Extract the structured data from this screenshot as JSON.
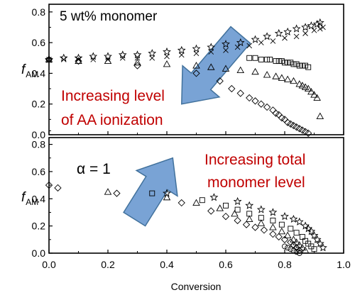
{
  "figure": {
    "xlabel": "Conversion",
    "ylabel_main": "f",
    "ylabel_sub": "AM"
  },
  "chart_data": [
    {
      "type": "scatter",
      "panel": "top",
      "title": "",
      "xlabel": "",
      "ylabel": "fAM",
      "xlim": [
        0.0,
        1.0
      ],
      "ylim": [
        0.0,
        0.85
      ],
      "xticks": [
        0.0,
        0.2,
        0.4,
        0.6,
        0.8,
        1.0
      ],
      "yticks": [
        0.0,
        0.2,
        0.4,
        0.6,
        0.8
      ],
      "xtick_labels": [
        "",
        "",
        "",
        "",
        "",
        ""
      ],
      "ytick_labels": [
        "0.0",
        "0.2",
        "0.4",
        "0.6",
        "0.8"
      ],
      "grid": false,
      "legend": "none",
      "annotations": [
        {
          "id": "top-panel-label",
          "text": "5 wt% monomer",
          "color": "#000000"
        },
        {
          "id": "ionization-note-line1",
          "text": "Increasing level",
          "color": "#c00000"
        },
        {
          "id": "ionization-note-line2",
          "text": "of AA ionization",
          "color": "#c00000"
        }
      ],
      "arrow": {
        "direction": "down-left",
        "from": [
          0.65,
          0.65
        ],
        "to": [
          0.45,
          0.2
        ],
        "fill": "#6e9bd1",
        "stroke": "#41719c"
      },
      "series": [
        {
          "marker": "star",
          "points": [
            [
              0.0,
              0.49
            ],
            [
              0.05,
              0.5
            ],
            [
              0.1,
              0.5
            ],
            [
              0.15,
              0.51
            ],
            [
              0.2,
              0.51
            ],
            [
              0.25,
              0.52
            ],
            [
              0.3,
              0.52
            ],
            [
              0.35,
              0.53
            ],
            [
              0.4,
              0.54
            ],
            [
              0.45,
              0.55
            ],
            [
              0.5,
              0.56
            ],
            [
              0.55,
              0.57
            ],
            [
              0.6,
              0.59
            ],
            [
              0.65,
              0.6
            ],
            [
              0.7,
              0.62
            ],
            [
              0.74,
              0.64
            ],
            [
              0.78,
              0.66
            ],
            [
              0.81,
              0.67
            ],
            [
              0.84,
              0.69
            ],
            [
              0.87,
              0.7
            ],
            [
              0.89,
              0.71
            ],
            [
              0.91,
              0.72
            ],
            [
              0.92,
              0.73
            ]
          ]
        },
        {
          "marker": "cross",
          "points": [
            [
              0.0,
              0.49
            ],
            [
              0.05,
              0.49
            ],
            [
              0.1,
              0.49
            ],
            [
              0.15,
              0.49
            ],
            [
              0.2,
              0.49
            ],
            [
              0.25,
              0.5
            ],
            [
              0.3,
              0.5
            ],
            [
              0.35,
              0.5
            ],
            [
              0.4,
              0.51
            ],
            [
              0.45,
              0.52
            ],
            [
              0.5,
              0.53
            ],
            [
              0.55,
              0.54
            ],
            [
              0.6,
              0.55
            ],
            [
              0.64,
              0.57
            ],
            [
              0.68,
              0.58
            ],
            [
              0.72,
              0.6
            ],
            [
              0.76,
              0.61
            ],
            [
              0.8,
              0.63
            ],
            [
              0.84,
              0.64
            ],
            [
              0.87,
              0.66
            ],
            [
              0.9,
              0.68
            ],
            [
              0.92,
              0.69
            ],
            [
              0.93,
              0.7
            ]
          ]
        },
        {
          "marker": "square",
          "points": [
            [
              0.68,
              0.5
            ],
            [
              0.7,
              0.5
            ],
            [
              0.72,
              0.49
            ],
            [
              0.74,
              0.49
            ],
            [
              0.75,
              0.49
            ],
            [
              0.77,
              0.48
            ],
            [
              0.78,
              0.48
            ],
            [
              0.79,
              0.48
            ],
            [
              0.8,
              0.47
            ],
            [
              0.81,
              0.47
            ],
            [
              0.82,
              0.47
            ],
            [
              0.83,
              0.46
            ],
            [
              0.84,
              0.46
            ],
            [
              0.85,
              0.45
            ],
            [
              0.86,
              0.45
            ],
            [
              0.87,
              0.45
            ],
            [
              0.88,
              0.44
            ]
          ]
        },
        {
          "marker": "triangle",
          "points": [
            [
              0.0,
              0.49
            ],
            [
              0.1,
              0.48
            ],
            [
              0.2,
              0.48
            ],
            [
              0.3,
              0.47
            ],
            [
              0.4,
              0.46
            ],
            [
              0.5,
              0.45
            ],
            [
              0.55,
              0.44
            ],
            [
              0.6,
              0.43
            ],
            [
              0.65,
              0.42
            ],
            [
              0.7,
              0.41
            ],
            [
              0.74,
              0.39
            ],
            [
              0.77,
              0.38
            ],
            [
              0.79,
              0.37
            ],
            [
              0.81,
              0.36
            ],
            [
              0.83,
              0.35
            ],
            [
              0.85,
              0.33
            ],
            [
              0.86,
              0.32
            ],
            [
              0.87,
              0.31
            ],
            [
              0.88,
              0.3
            ],
            [
              0.89,
              0.28
            ],
            [
              0.9,
              0.26
            ],
            [
              0.91,
              0.24
            ],
            [
              0.92,
              0.12
            ]
          ]
        },
        {
          "marker": "diamond",
          "points": [
            [
              0.0,
              0.49
            ],
            [
              0.1,
              0.48
            ],
            [
              0.3,
              0.45
            ],
            [
              0.5,
              0.4
            ],
            [
              0.58,
              0.35
            ],
            [
              0.62,
              0.3
            ],
            [
              0.65,
              0.27
            ],
            [
              0.68,
              0.24
            ],
            [
              0.7,
              0.22
            ],
            [
              0.72,
              0.2
            ],
            [
              0.74,
              0.18
            ],
            [
              0.76,
              0.16
            ],
            [
              0.77,
              0.14
            ],
            [
              0.78,
              0.13
            ],
            [
              0.79,
              0.11
            ],
            [
              0.8,
              0.1
            ],
            [
              0.81,
              0.08
            ],
            [
              0.82,
              0.07
            ],
            [
              0.83,
              0.06
            ],
            [
              0.84,
              0.05
            ],
            [
              0.85,
              0.04
            ],
            [
              0.86,
              0.03
            ],
            [
              0.87,
              0.02
            ],
            [
              0.88,
              0.01
            ]
          ]
        }
      ]
    },
    {
      "type": "scatter",
      "panel": "bottom",
      "title": "",
      "xlabel": "Conversion",
      "ylabel": "fAM",
      "xlim": [
        0.0,
        1.0
      ],
      "ylim": [
        0.0,
        0.85
      ],
      "xticks": [
        0.0,
        0.2,
        0.4,
        0.6,
        0.8,
        1.0
      ],
      "yticks": [
        0.0,
        0.2,
        0.4,
        0.6,
        0.8
      ],
      "xtick_labels": [
        "0.0",
        "0.2",
        "0.4",
        "0.6",
        "0.8",
        "1.0"
      ],
      "ytick_labels": [
        "0.0",
        "0.2",
        "0.4",
        "0.6",
        "0.8"
      ],
      "grid": false,
      "legend": "none",
      "annotations": [
        {
          "id": "bottom-panel-label",
          "text": "α = 1",
          "color": "#000000"
        },
        {
          "id": "total-monomer-note-line1",
          "text": "Increasing total",
          "color": "#c00000"
        },
        {
          "id": "total-monomer-note-line2",
          "text": "monomer level",
          "color": "#c00000"
        }
      ],
      "arrow": {
        "direction": "up-right",
        "from": [
          0.29,
          0.25
        ],
        "to": [
          0.42,
          0.7
        ],
        "fill": "#6e9bd1",
        "stroke": "#41719c"
      },
      "series": [
        {
          "marker": "star",
          "points": [
            [
              0.4,
              0.44
            ],
            [
              0.56,
              0.41
            ],
            [
              0.64,
              0.38
            ],
            [
              0.68,
              0.35
            ],
            [
              0.72,
              0.32
            ],
            [
              0.76,
              0.3
            ],
            [
              0.8,
              0.27
            ],
            [
              0.83,
              0.25
            ],
            [
              0.85,
              0.23
            ],
            [
              0.87,
              0.2
            ],
            [
              0.88,
              0.18
            ],
            [
              0.89,
              0.16
            ],
            [
              0.9,
              0.13
            ],
            [
              0.91,
              0.1
            ],
            [
              0.92,
              0.07
            ],
            [
              0.93,
              0.04
            ]
          ]
        },
        {
          "marker": "square",
          "points": [
            [
              0.35,
              0.44
            ],
            [
              0.52,
              0.39
            ],
            [
              0.6,
              0.35
            ],
            [
              0.64,
              0.32
            ],
            [
              0.68,
              0.29
            ],
            [
              0.72,
              0.26
            ],
            [
              0.76,
              0.24
            ],
            [
              0.79,
              0.21
            ],
            [
              0.82,
              0.18
            ],
            [
              0.84,
              0.15
            ],
            [
              0.86,
              0.12
            ],
            [
              0.87,
              0.09
            ],
            [
              0.88,
              0.07
            ],
            [
              0.89,
              0.05
            ],
            [
              0.9,
              0.03
            ]
          ]
        },
        {
          "marker": "triangle",
          "points": [
            [
              0.2,
              0.45
            ],
            [
              0.4,
              0.41
            ],
            [
              0.5,
              0.37
            ],
            [
              0.58,
              0.33
            ],
            [
              0.63,
              0.29
            ],
            [
              0.68,
              0.25
            ],
            [
              0.72,
              0.22
            ],
            [
              0.76,
              0.19
            ],
            [
              0.79,
              0.16
            ],
            [
              0.81,
              0.13
            ],
            [
              0.83,
              0.1
            ],
            [
              0.84,
              0.08
            ],
            [
              0.85,
              0.06
            ],
            [
              0.86,
              0.04
            ],
            [
              0.87,
              0.02
            ]
          ]
        },
        {
          "marker": "diamond",
          "points": [
            [
              0.0,
              0.5
            ],
            [
              0.03,
              0.48
            ],
            [
              0.23,
              0.44
            ],
            [
              0.45,
              0.37
            ],
            [
              0.55,
              0.31
            ],
            [
              0.6,
              0.27
            ],
            [
              0.64,
              0.24
            ],
            [
              0.67,
              0.21
            ],
            [
              0.7,
              0.19
            ],
            [
              0.73,
              0.17
            ],
            [
              0.76,
              0.14
            ],
            [
              0.78,
              0.12
            ],
            [
              0.8,
              0.1
            ],
            [
              0.82,
              0.08
            ],
            [
              0.83,
              0.06
            ],
            [
              0.84,
              0.04
            ],
            [
              0.85,
              0.02
            ]
          ]
        },
        {
          "marker": "circle",
          "points": [
            [
              0.8,
              0.05
            ],
            [
              0.81,
              0.04
            ],
            [
              0.82,
              0.03
            ],
            [
              0.83,
              0.02
            ],
            [
              0.84,
              0.01
            ],
            [
              0.85,
              0.0
            ]
          ]
        }
      ]
    }
  ]
}
